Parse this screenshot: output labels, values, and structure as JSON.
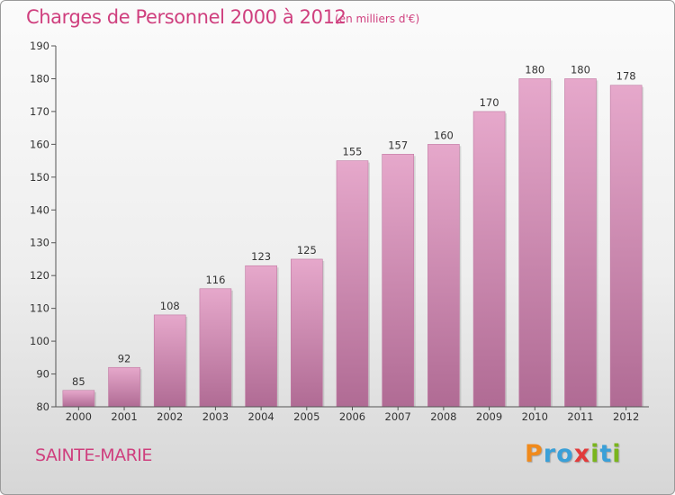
{
  "chart_data": {
    "type": "bar",
    "title": "Charges de Personnel 2000 à 2012",
    "subtitle": "(en milliers d'€)",
    "categories": [
      "2000",
      "2001",
      "2002",
      "2003",
      "2004",
      "2005",
      "2006",
      "2007",
      "2008",
      "2009",
      "2010",
      "2011",
      "2012"
    ],
    "values": [
      85,
      92,
      108,
      116,
      123,
      125,
      155,
      157,
      160,
      170,
      180,
      180,
      178
    ],
    "ylim": [
      80,
      190
    ],
    "yticks": [
      80,
      90,
      100,
      110,
      120,
      130,
      140,
      150,
      160,
      170,
      180,
      190
    ],
    "xlabel": "",
    "ylabel": "",
    "grid": false,
    "bar_color_top": "#e6a8cb",
    "bar_color_bottom": "#b06b94"
  },
  "location": "SAINTE-MARIE",
  "logo": {
    "letters": [
      "P",
      "r",
      "o",
      "x",
      "i",
      "t",
      "i"
    ],
    "colors": [
      "#f08a1c",
      "#3aa0d8",
      "#3aa0d8",
      "#e23b3b",
      "#7ab51d",
      "#3aa0d8",
      "#7ab51d"
    ]
  },
  "colors": {
    "accent": "#cf3f7e"
  }
}
